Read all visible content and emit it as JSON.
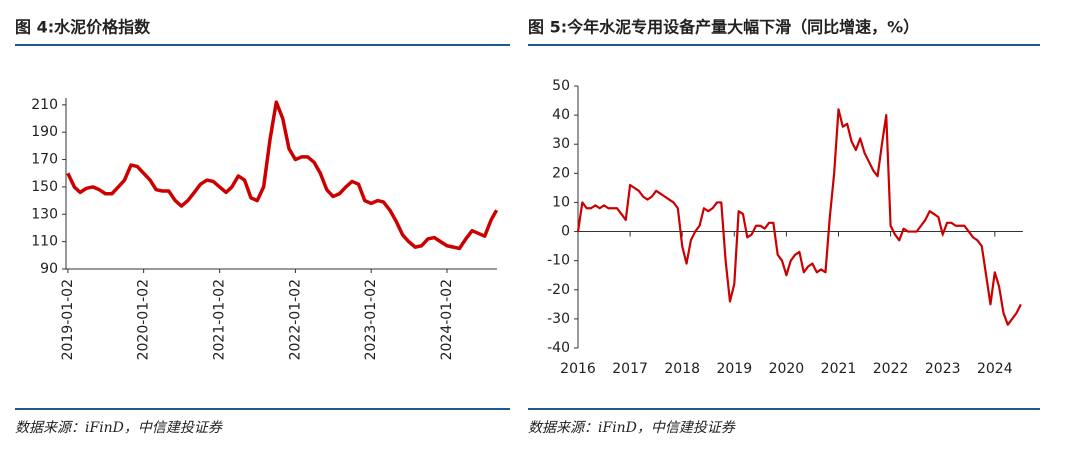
{
  "chart_data": [
    {
      "type": "line",
      "title": "图 4:水泥价格指数",
      "source": "数据来源：iFinD，中信建投证券",
      "color": "#cc0000",
      "x": [
        "2019-01-02",
        "2019-02-02",
        "2019-03-02",
        "2019-04-02",
        "2019-05-02",
        "2019-06-02",
        "2019-07-02",
        "2019-08-02",
        "2019-09-02",
        "2019-10-02",
        "2019-11-02",
        "2019-12-02",
        "2020-01-02",
        "2020-02-02",
        "2020-03-02",
        "2020-04-02",
        "2020-05-02",
        "2020-06-02",
        "2020-07-02",
        "2020-08-02",
        "2020-09-02",
        "2020-10-02",
        "2020-11-02",
        "2020-12-02",
        "2021-01-02",
        "2021-02-02",
        "2021-03-02",
        "2021-04-02",
        "2021-05-02",
        "2021-06-02",
        "2021-07-02",
        "2021-08-02",
        "2021-09-02",
        "2021-10-02",
        "2021-11-02",
        "2021-12-02",
        "2022-01-02",
        "2022-02-02",
        "2022-03-02",
        "2022-04-02",
        "2022-05-02",
        "2022-06-02",
        "2022-07-02",
        "2022-08-02",
        "2022-09-02",
        "2022-10-02",
        "2022-11-02",
        "2022-12-02",
        "2023-01-02",
        "2023-02-02",
        "2023-03-02",
        "2023-04-02",
        "2023-05-02",
        "2023-06-02",
        "2023-07-02",
        "2023-08-02",
        "2023-09-02",
        "2023-10-02",
        "2023-11-02",
        "2023-12-02",
        "2024-01-02",
        "2024-02-02",
        "2024-03-02",
        "2024-04-02",
        "2024-05-02",
        "2024-06-02",
        "2024-07-02",
        "2024-08-02",
        "2024-08-28"
      ],
      "values": [
        160,
        150,
        146,
        149,
        150,
        148,
        145,
        145,
        150,
        155,
        166,
        165,
        160,
        155,
        148,
        147,
        147,
        140,
        136,
        140,
        146,
        152,
        155,
        154,
        150,
        146,
        150,
        158,
        155,
        142,
        140,
        150,
        185,
        212,
        200,
        178,
        170,
        172,
        172,
        168,
        160,
        148,
        143,
        145,
        150,
        154,
        152,
        140,
        138,
        140,
        139,
        133,
        125,
        115,
        110,
        106,
        107,
        112,
        113,
        110,
        107,
        106,
        105,
        112,
        118,
        116,
        114,
        126,
        133
      ],
      "xlim": [
        "2018-12-24",
        "2024-08-30"
      ],
      "xticks": [
        "2019-01-02",
        "2020-01-02",
        "2021-01-02",
        "2022-01-02",
        "2023-01-02",
        "2024-01-02"
      ],
      "ylim": [
        90,
        215
      ],
      "yticks": [
        90,
        110,
        130,
        150,
        170,
        190,
        210
      ]
    },
    {
      "type": "line_category",
      "title": "图 5:今年水泥专用设备产量大幅下滑（同比增速，%）",
      "source": "数据来源：iFinD，中信建投证券",
      "color": "#cc0000",
      "categories": [
        "2016",
        null,
        null,
        null,
        null,
        null,
        null,
        null,
        null,
        null,
        null,
        null,
        "2017",
        null,
        null,
        null,
        null,
        null,
        null,
        null,
        null,
        null,
        null,
        null,
        "2018",
        null,
        null,
        null,
        null,
        null,
        null,
        null,
        null,
        null,
        null,
        null,
        "2019",
        null,
        null,
        null,
        null,
        null,
        null,
        null,
        null,
        null,
        null,
        null,
        "2020",
        null,
        null,
        null,
        null,
        null,
        null,
        null,
        null,
        null,
        null,
        null,
        "2021",
        null,
        null,
        null,
        null,
        null,
        null,
        null,
        null,
        null,
        null,
        null,
        "2022",
        null,
        null,
        null,
        null,
        null,
        null,
        null,
        null,
        null,
        null,
        null,
        "2023",
        null,
        null,
        null,
        null,
        null,
        null,
        null,
        null,
        null,
        null,
        null,
        "2024",
        null,
        null,
        null,
        null,
        null,
        null
      ],
      "values": [
        0,
        10,
        8,
        8,
        9,
        8,
        9,
        8,
        8,
        8,
        6,
        4,
        16,
        15,
        14,
        12,
        11,
        12,
        14,
        13,
        12,
        11,
        10,
        8,
        -5,
        -11,
        -3,
        0,
        2,
        8,
        7,
        8,
        10,
        10,
        -10,
        -24,
        -18,
        7,
        6,
        -2,
        -1,
        2,
        2,
        1,
        3,
        3,
        -8,
        -10,
        -15,
        -10,
        -8,
        -7,
        -14,
        -12,
        -11,
        -14,
        -13,
        -14,
        5,
        20,
        42,
        36,
        37,
        31,
        28,
        32,
        27,
        24,
        21,
        19,
        30,
        40,
        2,
        -1,
        -3,
        1,
        0,
        0,
        0,
        2,
        4,
        7,
        6,
        5,
        -1,
        3,
        3,
        2,
        2,
        2,
        0,
        -2,
        -3,
        -5,
        -15,
        -25,
        -14,
        -19,
        -28,
        -32,
        -30,
        -28,
        -25
      ],
      "ylim": [
        -40,
        50
      ],
      "yticks": [
        -40,
        -30,
        -20,
        -10,
        0,
        10,
        20,
        30,
        40,
        50
      ]
    }
  ]
}
